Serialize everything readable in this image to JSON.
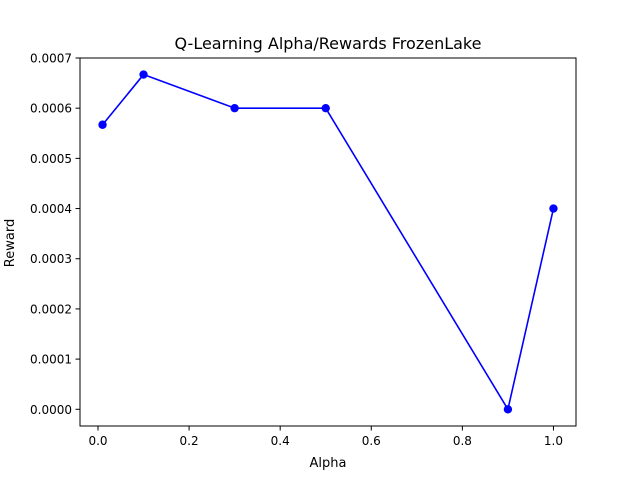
{
  "chart_data": {
    "type": "line",
    "title": "Q-Learning Alpha/Rewards FrozenLake",
    "xlabel": "Alpha",
    "ylabel": "Reward",
    "x": [
      0.01,
      0.1,
      0.3,
      0.5,
      0.9,
      1.0
    ],
    "series": [
      {
        "values": [
          0.000567,
          0.000667,
          0.0006,
          0.0006,
          0.0,
          0.0004
        ],
        "color": "#0000ff",
        "marker": "circle"
      }
    ],
    "xlim": [
      -0.0395,
      1.0495
    ],
    "ylim": [
      -3.33e-05,
      0.0007
    ],
    "xticks": [
      0.0,
      0.2,
      0.4,
      0.6,
      0.8,
      1.0
    ],
    "xtick_labels": [
      "0.0",
      "0.2",
      "0.4",
      "0.6",
      "0.8",
      "1.0"
    ],
    "yticks": [
      0.0,
      0.0001,
      0.0002,
      0.0003,
      0.0004,
      0.0005,
      0.0006,
      0.0007
    ],
    "ytick_labels": [
      "0.0000",
      "0.0001",
      "0.0002",
      "0.0003",
      "0.0004",
      "0.0005",
      "0.0006",
      "0.0007"
    ],
    "grid": false,
    "legend": "none"
  }
}
